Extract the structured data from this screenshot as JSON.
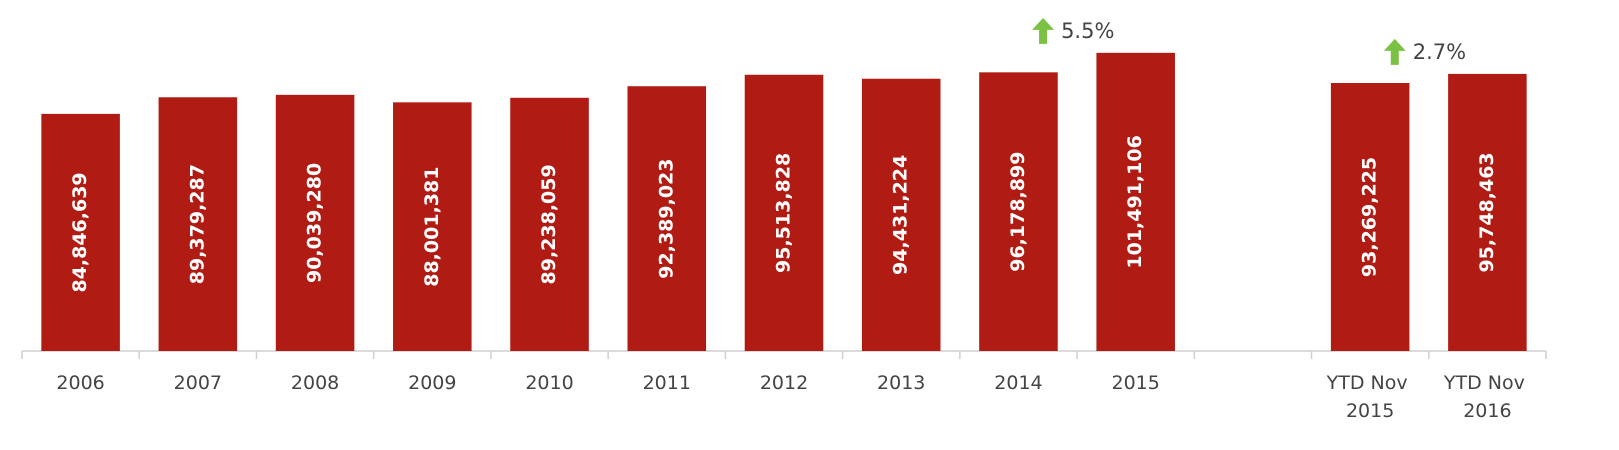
{
  "chart_data": {
    "type": "bar",
    "categories": [
      "2006",
      "2007",
      "2008",
      "2009",
      "2010",
      "2011",
      "2012",
      "2013",
      "2014",
      "2015",
      null,
      "YTD Nov 2015",
      "YTD Nov 2016"
    ],
    "values": [
      84846639,
      89379287,
      90039280,
      88001381,
      89238059,
      92389023,
      95513828,
      94431224,
      96178899,
      101491106,
      null,
      93269225,
      95748463
    ],
    "value_labels": [
      "84,846,639",
      "89,379,287",
      "90,039,280",
      "88,001,381",
      "89,238,059",
      "92,389,023",
      "95,513,828",
      "94,431,224",
      "96,178,899",
      "101,491,106",
      null,
      "93,269,225",
      "95,748,463"
    ],
    "color": "#b01c14",
    "ylim": [
      20200000,
      115900000
    ],
    "annotations": [
      {
        "text": "5.5%",
        "color": "#7bc143"
      },
      {
        "text": "2.7%",
        "color": "#7bc143"
      }
    ]
  }
}
